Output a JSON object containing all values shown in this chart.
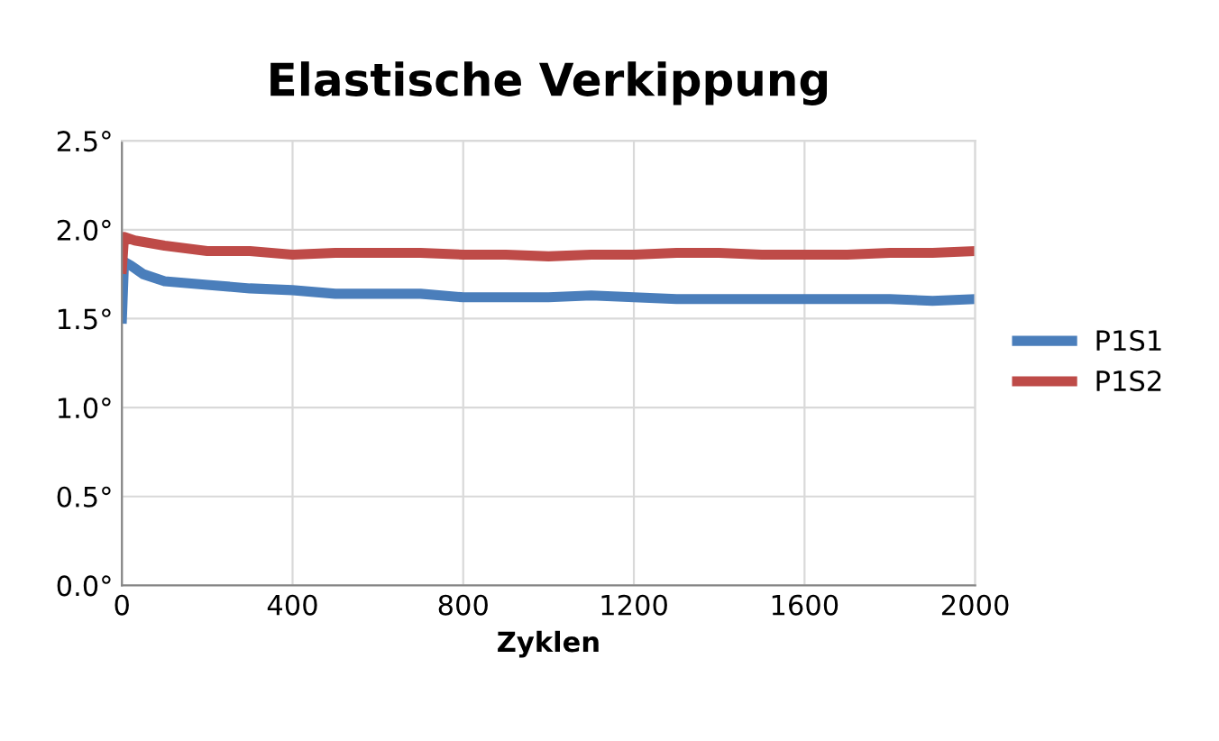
{
  "chart_data": {
    "type": "line",
    "title": "Elastische Verkippung",
    "xlabel": "Zyklen",
    "xlim": [
      0,
      2000
    ],
    "xticks": [
      0,
      400,
      800,
      1200,
      1600,
      2000
    ],
    "ylim": [
      0,
      2.5
    ],
    "yticks": [
      {
        "value": 0,
        "label": "0.0°"
      },
      {
        "value": 0.5,
        "label": "0.5°"
      },
      {
        "value": 1.0,
        "label": "1.0°"
      },
      {
        "value": 1.5,
        "label": "1.5°"
      },
      {
        "value": 2.0,
        "label": "2.0°"
      },
      {
        "value": 2.5,
        "label": "2.5°"
      }
    ],
    "grid": true,
    "legend": "right",
    "marker": "none",
    "line_style": "solid",
    "series": [
      {
        "name": "P1S1",
        "color": "#4a7ebb",
        "x": [
          0,
          5,
          20,
          50,
          100,
          200,
          300,
          400,
          500,
          600,
          700,
          800,
          900,
          1000,
          1100,
          1200,
          1300,
          1400,
          1500,
          1600,
          1700,
          1800,
          1900,
          2000
        ],
        "values": [
          1.5,
          1.82,
          1.8,
          1.75,
          1.71,
          1.69,
          1.67,
          1.66,
          1.64,
          1.64,
          1.64,
          1.62,
          1.62,
          1.62,
          1.63,
          1.62,
          1.61,
          1.61,
          1.61,
          1.61,
          1.61,
          1.61,
          1.6,
          1.61
        ]
      },
      {
        "name": "P1S2",
        "color": "#be4b48",
        "x": [
          0,
          5,
          30,
          100,
          200,
          300,
          400,
          500,
          600,
          700,
          800,
          900,
          1000,
          1100,
          1200,
          1300,
          1400,
          1500,
          1600,
          1700,
          1800,
          1900,
          2000
        ],
        "values": [
          1.78,
          1.96,
          1.94,
          1.91,
          1.88,
          1.88,
          1.86,
          1.87,
          1.87,
          1.87,
          1.86,
          1.86,
          1.85,
          1.86,
          1.86,
          1.87,
          1.87,
          1.86,
          1.86,
          1.86,
          1.87,
          1.87,
          1.88
        ]
      }
    ]
  }
}
